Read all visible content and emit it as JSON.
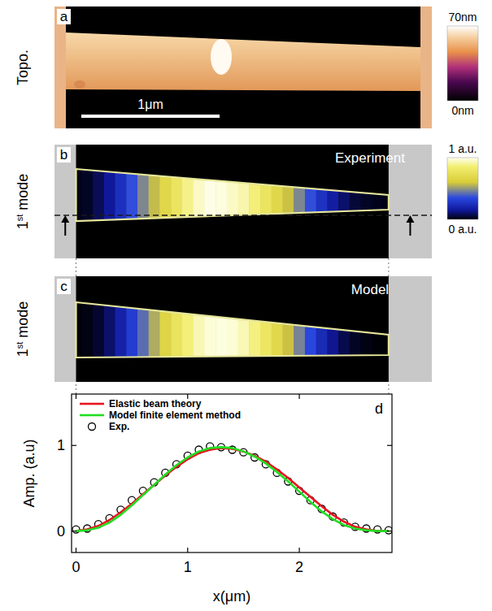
{
  "chart_data": [
    {
      "type": "image",
      "panel": "a",
      "ylabel": "Topo.",
      "scale_bar": {
        "label": "1μm",
        "length": 1
      },
      "colorbar": {
        "range": [
          0,
          70
        ],
        "ticks": [
          {
            "value": 70,
            "label": "70nm"
          },
          {
            "value": 0,
            "label": "0nm"
          }
        ]
      }
    },
    {
      "type": "heatmap",
      "panel": "b",
      "ylabel": "1st mode",
      "title": "Experiment",
      "x": [
        0,
        0.1,
        0.2,
        0.3,
        0.4,
        0.5,
        0.6,
        0.7,
        0.8,
        0.9,
        1,
        1.1,
        1.2,
        1.3,
        1.4,
        1.5,
        1.6,
        1.7,
        1.8,
        1.9,
        2,
        2.1,
        2.2,
        2.3,
        2.4,
        2.5,
        2.6,
        2.7,
        2.8
      ],
      "values": [
        0.02,
        0.03,
        0.08,
        0.15,
        0.25,
        0.36,
        0.47,
        0.57,
        0.68,
        0.78,
        0.88,
        0.95,
        0.99,
        0.98,
        0.95,
        0.92,
        0.86,
        0.78,
        0.68,
        0.58,
        0.47,
        0.36,
        0.26,
        0.17,
        0.1,
        0.05,
        0.03,
        0.02,
        0.01
      ],
      "colorbar": {
        "range": [
          0,
          1
        ],
        "ticks": [
          {
            "value": 1,
            "label": "1 a.u."
          },
          {
            "value": 0,
            "label": "0 a.u."
          }
        ]
      }
    },
    {
      "type": "heatmap",
      "panel": "c",
      "ylabel": "1st mode",
      "title": "Model",
      "x": [
        0,
        0.1,
        0.2,
        0.3,
        0.4,
        0.5,
        0.6,
        0.7,
        0.8,
        0.9,
        1,
        1.1,
        1.2,
        1.3,
        1.4,
        1.5,
        1.6,
        1.7,
        1.8,
        1.9,
        2,
        2.1,
        2.2,
        2.3,
        2.4,
        2.5,
        2.6,
        2.7,
        2.8
      ],
      "values": [
        0,
        0.01,
        0.04,
        0.1,
        0.19,
        0.3,
        0.42,
        0.54,
        0.66,
        0.77,
        0.86,
        0.93,
        0.97,
        0.98,
        0.97,
        0.93,
        0.87,
        0.79,
        0.69,
        0.58,
        0.46,
        0.34,
        0.23,
        0.14,
        0.07,
        0.03,
        0.01,
        0,
        0
      ]
    },
    {
      "type": "line",
      "panel": "d",
      "xlabel": "x(μm)",
      "ylabel": "Amp. (a.u)",
      "x": [
        0,
        0.1,
        0.2,
        0.3,
        0.4,
        0.5,
        0.6,
        0.7,
        0.8,
        0.9,
        1,
        1.1,
        1.2,
        1.3,
        1.4,
        1.5,
        1.6,
        1.7,
        1.8,
        1.9,
        2,
        2.1,
        2.2,
        2.3,
        2.4,
        2.5,
        2.6,
        2.7,
        2.8
      ],
      "xlim": [
        -0.04,
        2.83
      ],
      "xticks": [
        0,
        1,
        2
      ],
      "ylim": [
        -0.25,
        1.6
      ],
      "yticks": [
        0,
        1
      ],
      "legend": "upper left",
      "series": [
        {
          "name": "Elastic beam theory",
          "color": "#e8141e",
          "type": "line",
          "values": [
            0,
            0.02,
            0.06,
            0.13,
            0.22,
            0.32,
            0.43,
            0.54,
            0.65,
            0.75,
            0.84,
            0.91,
            0.95,
            0.97,
            0.96,
            0.93,
            0.88,
            0.81,
            0.72,
            0.62,
            0.51,
            0.4,
            0.29,
            0.19,
            0.11,
            0.05,
            0.02,
            0,
            0
          ]
        },
        {
          "name": "Model finite element method",
          "color": "#22dd22",
          "type": "line",
          "values": [
            0,
            0.01,
            0.04,
            0.1,
            0.19,
            0.3,
            0.42,
            0.54,
            0.66,
            0.77,
            0.86,
            0.93,
            0.97,
            0.98,
            0.97,
            0.93,
            0.87,
            0.79,
            0.69,
            0.58,
            0.46,
            0.34,
            0.23,
            0.14,
            0.07,
            0.03,
            0.01,
            0,
            0
          ]
        },
        {
          "name": "Exp.",
          "color": "#000000",
          "type": "scatter",
          "marker": "circle",
          "values": [
            0.02,
            0.03,
            0.08,
            0.15,
            0.25,
            0.36,
            0.47,
            0.57,
            0.68,
            0.78,
            0.88,
            0.95,
            0.99,
            0.98,
            0.95,
            0.92,
            0.86,
            0.78,
            0.68,
            0.58,
            0.47,
            0.36,
            0.26,
            0.17,
            0.1,
            0.05,
            0.03,
            0.02,
            0.01
          ]
        }
      ]
    }
  ]
}
